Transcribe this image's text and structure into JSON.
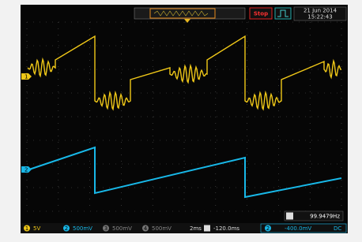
{
  "header": {
    "status": "Stop",
    "date": "21 Jun 2014",
    "time": "15:22:43"
  },
  "markers": {
    "channel_1": "1",
    "channel_2": "2"
  },
  "footer": {
    "channels": [
      {
        "id": "1",
        "scale": "5V"
      },
      {
        "id": "2",
        "scale": "500mV"
      },
      {
        "id": "3",
        "scale": "500mV"
      },
      {
        "id": "4",
        "scale": "500mV"
      }
    ],
    "timebase": "2ms",
    "delay": "-120.0ms",
    "trigger_source": "2",
    "trigger_level": "-400.0mV",
    "trigger_coupling": "DC",
    "frequency": "99.9479Hz"
  }
}
